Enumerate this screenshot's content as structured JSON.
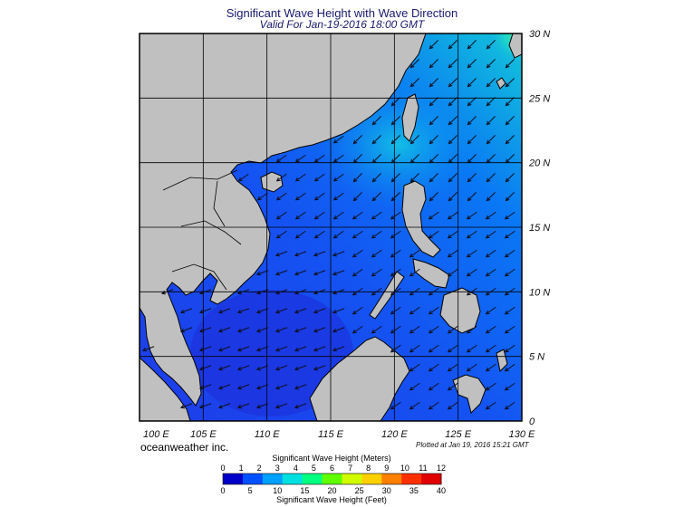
{
  "header": {
    "title": "Significant Wave Height with Wave Direction",
    "subtitle": "Valid For Jan-19-2016 18:00 GMT"
  },
  "map": {
    "lon_labels": [
      "100 E",
      "105 E",
      "110 E",
      "115 E",
      "120 E",
      "125 E",
      "130 E"
    ],
    "lat_labels": [
      "30 N",
      "25 N",
      "20 N",
      "15 N",
      "10 N",
      "5 N",
      "0"
    ],
    "lon_range": [
      100,
      130
    ],
    "lat_range": [
      0,
      30
    ],
    "colors": {
      "land": "#c0c0c0",
      "sea_low": "#1e3cf0",
      "sea_mid": "#0a6cf5",
      "sea_high": "#14d2d2",
      "peak": "#46f08c",
      "arrow": "#101020",
      "grid": "#000000"
    }
  },
  "footer": {
    "credit": "oceanweather inc.",
    "plotted": "Plotted at Jan 19, 2016 15:21 GMT"
  },
  "colorbar": {
    "title_top": "Significant Wave Height (Meters)",
    "title_bottom": "Significant Wave Height (Feet)",
    "meters": [
      "0",
      "1",
      "2",
      "3",
      "4",
      "5",
      "6",
      "7",
      "8",
      "9",
      "10",
      "11",
      "12"
    ],
    "feet": [
      "0",
      "5",
      "10",
      "15",
      "20",
      "25",
      "30",
      "35",
      "40"
    ],
    "colors": [
      "#0000c8",
      "#0050ff",
      "#00a0ff",
      "#00e0e0",
      "#00ff80",
      "#60ff00",
      "#d0ff00",
      "#ffd000",
      "#ff8000",
      "#ff3000",
      "#e00000"
    ]
  }
}
